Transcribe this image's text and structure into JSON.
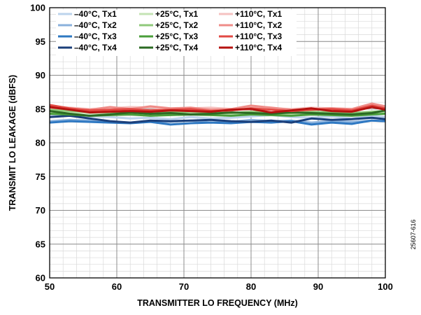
{
  "chart_data": {
    "type": "line",
    "xlabel": "TRANSMITTER LO FREQUENCY (MHz)",
    "ylabel": "TRANSMIT LO LEAKAGE (dBFS)",
    "xlim": [
      50,
      100
    ],
    "ylim": [
      60,
      100
    ],
    "x_ticks": [
      50,
      60,
      70,
      80,
      90,
      100
    ],
    "y_ticks": [
      60,
      65,
      70,
      75,
      80,
      85,
      90,
      95,
      100
    ],
    "grid": true,
    "legend_position": "top-left",
    "x": [
      50,
      53,
      56,
      59,
      62,
      65,
      68,
      71,
      74,
      77,
      80,
      83,
      86,
      89,
      92,
      95,
      98,
      100
    ],
    "series": [
      {
        "name": "–40°C, Tx1",
        "color": "#bcd3ec",
        "values": [
          84.2,
          84.0,
          83.9,
          83.8,
          83.6,
          83.7,
          83.5,
          83.8,
          83.6,
          83.7,
          83.9,
          84.1,
          83.8,
          83.7,
          83.9,
          83.6,
          84.0,
          83.8
        ]
      },
      {
        "name": "–40°C, Tx2",
        "color": "#8ab1dc",
        "values": [
          83.2,
          83.4,
          83.3,
          83.1,
          83.0,
          83.2,
          83.1,
          83.3,
          83.0,
          83.1,
          83.4,
          83.2,
          83.3,
          83.0,
          83.2,
          83.1,
          83.3,
          83.2
        ]
      },
      {
        "name": "–40°C, Tx3",
        "color": "#2e78c2",
        "values": [
          83.0,
          83.2,
          83.1,
          83.0,
          82.9,
          83.1,
          82.7,
          82.9,
          83.0,
          82.9,
          83.1,
          83.0,
          83.2,
          82.7,
          83.0,
          82.8,
          83.3,
          83.2
        ]
      },
      {
        "name": "–40°C, Tx4",
        "color": "#1b3f7a",
        "values": [
          83.8,
          84.0,
          83.6,
          83.2,
          83.0,
          83.3,
          83.2,
          83.3,
          83.4,
          83.2,
          83.1,
          83.3,
          83.0,
          83.6,
          83.4,
          83.5,
          83.7,
          83.5
        ]
      },
      {
        "name": "+25°C, Tx1",
        "color": "#c4e3b4",
        "values": [
          84.6,
          84.5,
          84.4,
          84.3,
          84.5,
          84.4,
          84.3,
          84.5,
          84.4,
          84.3,
          84.5,
          84.4,
          84.3,
          84.5,
          84.4,
          84.3,
          84.5,
          84.4
        ]
      },
      {
        "name": "+25°C, Tx2",
        "color": "#8fc97a",
        "values": [
          84.9,
          84.7,
          84.6,
          84.5,
          84.6,
          84.7,
          84.5,
          84.6,
          84.5,
          84.4,
          84.6,
          84.5,
          84.4,
          84.6,
          84.5,
          84.4,
          84.6,
          84.7
        ]
      },
      {
        "name": "+25°C, Tx3",
        "color": "#4a9e3a",
        "values": [
          84.3,
          84.2,
          84.0,
          84.1,
          84.2,
          84.0,
          84.1,
          84.2,
          84.1,
          84.0,
          84.2,
          84.1,
          84.0,
          84.2,
          84.1,
          84.0,
          84.2,
          84.3
        ]
      },
      {
        "name": "+25°C, Tx4",
        "color": "#2b6a23",
        "values": [
          84.7,
          84.3,
          84.0,
          84.2,
          84.5,
          84.3,
          84.4,
          84.2,
          84.3,
          84.5,
          84.4,
          84.3,
          84.5,
          84.4,
          84.3,
          84.2,
          84.4,
          84.8
        ]
      },
      {
        "name": "+110°C, Tx1",
        "color": "#f5c2c0",
        "values": [
          85.4,
          85.2,
          85.0,
          85.1,
          85.3,
          85.2,
          85.0,
          85.1,
          85.2,
          85.0,
          85.3,
          85.1,
          85.0,
          85.2,
          85.1,
          85.0,
          85.2,
          85.3
        ]
      },
      {
        "name": "+110°C, Tx2",
        "color": "#ef8c88",
        "values": [
          85.2,
          85.0,
          84.9,
          85.3,
          85.0,
          85.4,
          85.1,
          85.2,
          84.9,
          85.0,
          85.5,
          85.2,
          84.9,
          85.0,
          85.1,
          85.0,
          85.8,
          85.4
        ]
      },
      {
        "name": "+110°C, Tx3",
        "color": "#e24a44",
        "values": [
          85.6,
          85.1,
          84.8,
          84.9,
          85.0,
          84.8,
          84.9,
          85.0,
          84.7,
          84.8,
          85.1,
          84.9,
          84.7,
          84.9,
          85.0,
          84.8,
          85.5,
          85.1
        ]
      },
      {
        "name": "+110°C, Tx4",
        "color": "#b5120f",
        "values": [
          85.3,
          84.9,
          84.5,
          84.6,
          84.7,
          84.6,
          84.8,
          84.7,
          84.6,
          84.9,
          85.0,
          84.5,
          84.8,
          85.1,
          84.7,
          84.6,
          85.3,
          84.9
        ]
      }
    ]
  },
  "figure_id": "25607-616"
}
